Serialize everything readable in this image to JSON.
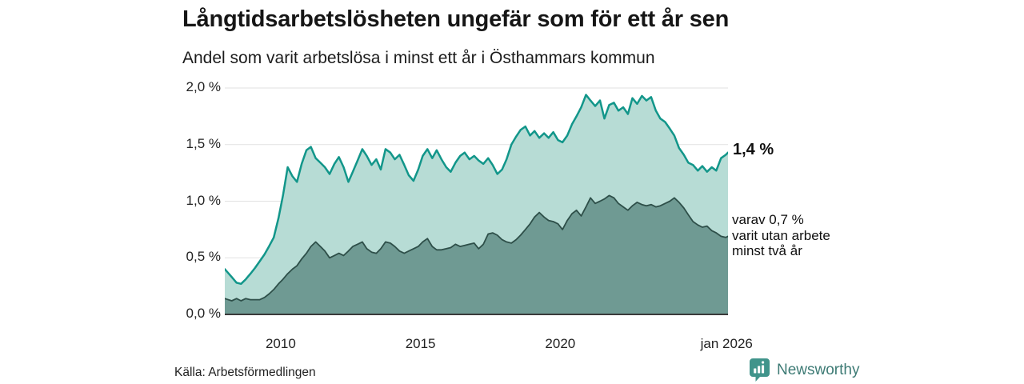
{
  "chart_data": {
    "type": "area",
    "title": "Långtidsarbetslösheten ungefär som för ett år sen",
    "subtitle": "Andel som varit arbetslösa i minst ett år i Östhammars kommun",
    "x": [
      2008.0,
      2008.25,
      2008.42,
      2008.58,
      2008.75,
      2008.92,
      2009.08,
      2009.25,
      2009.42,
      2009.58,
      2009.75,
      2009.92,
      2010.08,
      2010.25,
      2010.42,
      2010.58,
      2010.75,
      2010.92,
      2011.08,
      2011.25,
      2011.42,
      2011.58,
      2011.75,
      2011.92,
      2012.08,
      2012.25,
      2012.42,
      2012.58,
      2012.75,
      2012.92,
      2013.08,
      2013.25,
      2013.42,
      2013.58,
      2013.75,
      2013.92,
      2014.08,
      2014.25,
      2014.42,
      2014.58,
      2014.75,
      2014.92,
      2015.08,
      2015.25,
      2015.42,
      2015.58,
      2015.75,
      2015.92,
      2016.08,
      2016.25,
      2016.42,
      2016.58,
      2016.75,
      2016.92,
      2017.08,
      2017.25,
      2017.42,
      2017.58,
      2017.75,
      2017.92,
      2018.08,
      2018.25,
      2018.42,
      2018.58,
      2018.75,
      2018.92,
      2019.08,
      2019.25,
      2019.42,
      2019.58,
      2019.75,
      2019.92,
      2020.08,
      2020.25,
      2020.42,
      2020.58,
      2020.75,
      2020.92,
      2021.08,
      2021.25,
      2021.42,
      2021.58,
      2021.75,
      2021.92,
      2022.08,
      2022.25,
      2022.42,
      2022.58,
      2022.75,
      2022.92,
      2023.08,
      2023.25,
      2023.42,
      2023.58,
      2023.75,
      2023.92,
      2024.08,
      2024.25,
      2024.42,
      2024.58,
      2024.75,
      2024.92,
      2025.08,
      2025.25,
      2025.42,
      2025.58,
      2025.75,
      2025.92,
      2026.0
    ],
    "series": [
      {
        "name": "Andel som varit arbetslösa i minst ett år",
        "end_label": "1,4 %",
        "line_color": "#12968a",
        "fill_color": "#b7dcd5",
        "values": [
          0.4,
          0.33,
          0.28,
          0.27,
          0.31,
          0.36,
          0.41,
          0.47,
          0.53,
          0.6,
          0.68,
          0.85,
          1.05,
          1.3,
          1.22,
          1.17,
          1.33,
          1.45,
          1.48,
          1.38,
          1.34,
          1.3,
          1.24,
          1.33,
          1.39,
          1.3,
          1.17,
          1.26,
          1.36,
          1.46,
          1.4,
          1.32,
          1.37,
          1.28,
          1.46,
          1.43,
          1.37,
          1.41,
          1.32,
          1.23,
          1.18,
          1.28,
          1.4,
          1.46,
          1.38,
          1.45,
          1.37,
          1.3,
          1.26,
          1.34,
          1.4,
          1.43,
          1.37,
          1.4,
          1.36,
          1.33,
          1.38,
          1.32,
          1.24,
          1.28,
          1.37,
          1.5,
          1.57,
          1.63,
          1.66,
          1.58,
          1.62,
          1.56,
          1.6,
          1.56,
          1.61,
          1.54,
          1.52,
          1.58,
          1.68,
          1.75,
          1.83,
          1.94,
          1.89,
          1.84,
          1.89,
          1.73,
          1.85,
          1.87,
          1.8,
          1.83,
          1.77,
          1.91,
          1.86,
          1.93,
          1.89,
          1.92,
          1.8,
          1.73,
          1.7,
          1.64,
          1.58,
          1.47,
          1.41,
          1.34,
          1.32,
          1.27,
          1.31,
          1.26,
          1.3,
          1.27,
          1.38,
          1.41,
          1.43
        ]
      },
      {
        "name": "varav utan arbete minst två år",
        "end_label": "varav 0,7 % varit utan arbete minst två år",
        "line_color": "#2e4f49",
        "fill_color": "#6f9a93",
        "values": [
          0.14,
          0.12,
          0.14,
          0.12,
          0.14,
          0.13,
          0.13,
          0.13,
          0.15,
          0.18,
          0.22,
          0.27,
          0.31,
          0.36,
          0.4,
          0.43,
          0.49,
          0.54,
          0.6,
          0.64,
          0.6,
          0.56,
          0.5,
          0.52,
          0.54,
          0.52,
          0.56,
          0.6,
          0.62,
          0.64,
          0.58,
          0.55,
          0.54,
          0.58,
          0.64,
          0.63,
          0.6,
          0.56,
          0.54,
          0.56,
          0.58,
          0.6,
          0.64,
          0.67,
          0.6,
          0.57,
          0.57,
          0.58,
          0.59,
          0.62,
          0.6,
          0.61,
          0.62,
          0.63,
          0.58,
          0.62,
          0.71,
          0.72,
          0.7,
          0.66,
          0.64,
          0.63,
          0.66,
          0.7,
          0.75,
          0.8,
          0.86,
          0.9,
          0.86,
          0.83,
          0.82,
          0.8,
          0.75,
          0.83,
          0.89,
          0.92,
          0.87,
          0.95,
          1.03,
          0.98,
          1.0,
          1.02,
          1.05,
          1.03,
          0.98,
          0.95,
          0.92,
          0.96,
          0.99,
          0.97,
          0.96,
          0.97,
          0.95,
          0.96,
          0.98,
          1.0,
          1.03,
          0.99,
          0.94,
          0.88,
          0.82,
          0.79,
          0.77,
          0.78,
          0.74,
          0.72,
          0.69,
          0.68,
          0.69
        ]
      }
    ],
    "xlim": [
      2008.0,
      2026.0
    ],
    "ylim": [
      0,
      2.0
    ],
    "yticks": [
      {
        "v": 2.0,
        "label": "2,0 %"
      },
      {
        "v": 1.5,
        "label": "1,5 %"
      },
      {
        "v": 1.0,
        "label": "1,0 %"
      },
      {
        "v": 0.5,
        "label": "0,5 %"
      },
      {
        "v": 0.0,
        "label": "0,0 %"
      }
    ],
    "xticks": [
      {
        "v": 2010,
        "label": "2010"
      },
      {
        "v": 2015,
        "label": "2015"
      },
      {
        "v": 2020,
        "label": "2020"
      },
      {
        "v": 2025.95,
        "label": "jan 2026"
      }
    ],
    "grid": "horizontal",
    "legend": "none"
  },
  "annotations": {
    "latest_value": "1,4 %",
    "secondary_line1": "varav 0,7 %",
    "secondary_line2": "varit utan arbete",
    "secondary_line3": "minst två år"
  },
  "footer": {
    "source": "Källa: Arbetsförmedlingen",
    "brand": "Newsworthy"
  },
  "colors": {
    "accent_teal": "#12968a",
    "fill_light": "#b7dcd5",
    "fill_dark": "#6f9a93",
    "line_dark": "#2e4f49",
    "grid": "#e2e2e2",
    "axis_baseline": "#3a3a3a",
    "brand_bubble": "#40948b",
    "brand_text": "#3e7b75"
  }
}
